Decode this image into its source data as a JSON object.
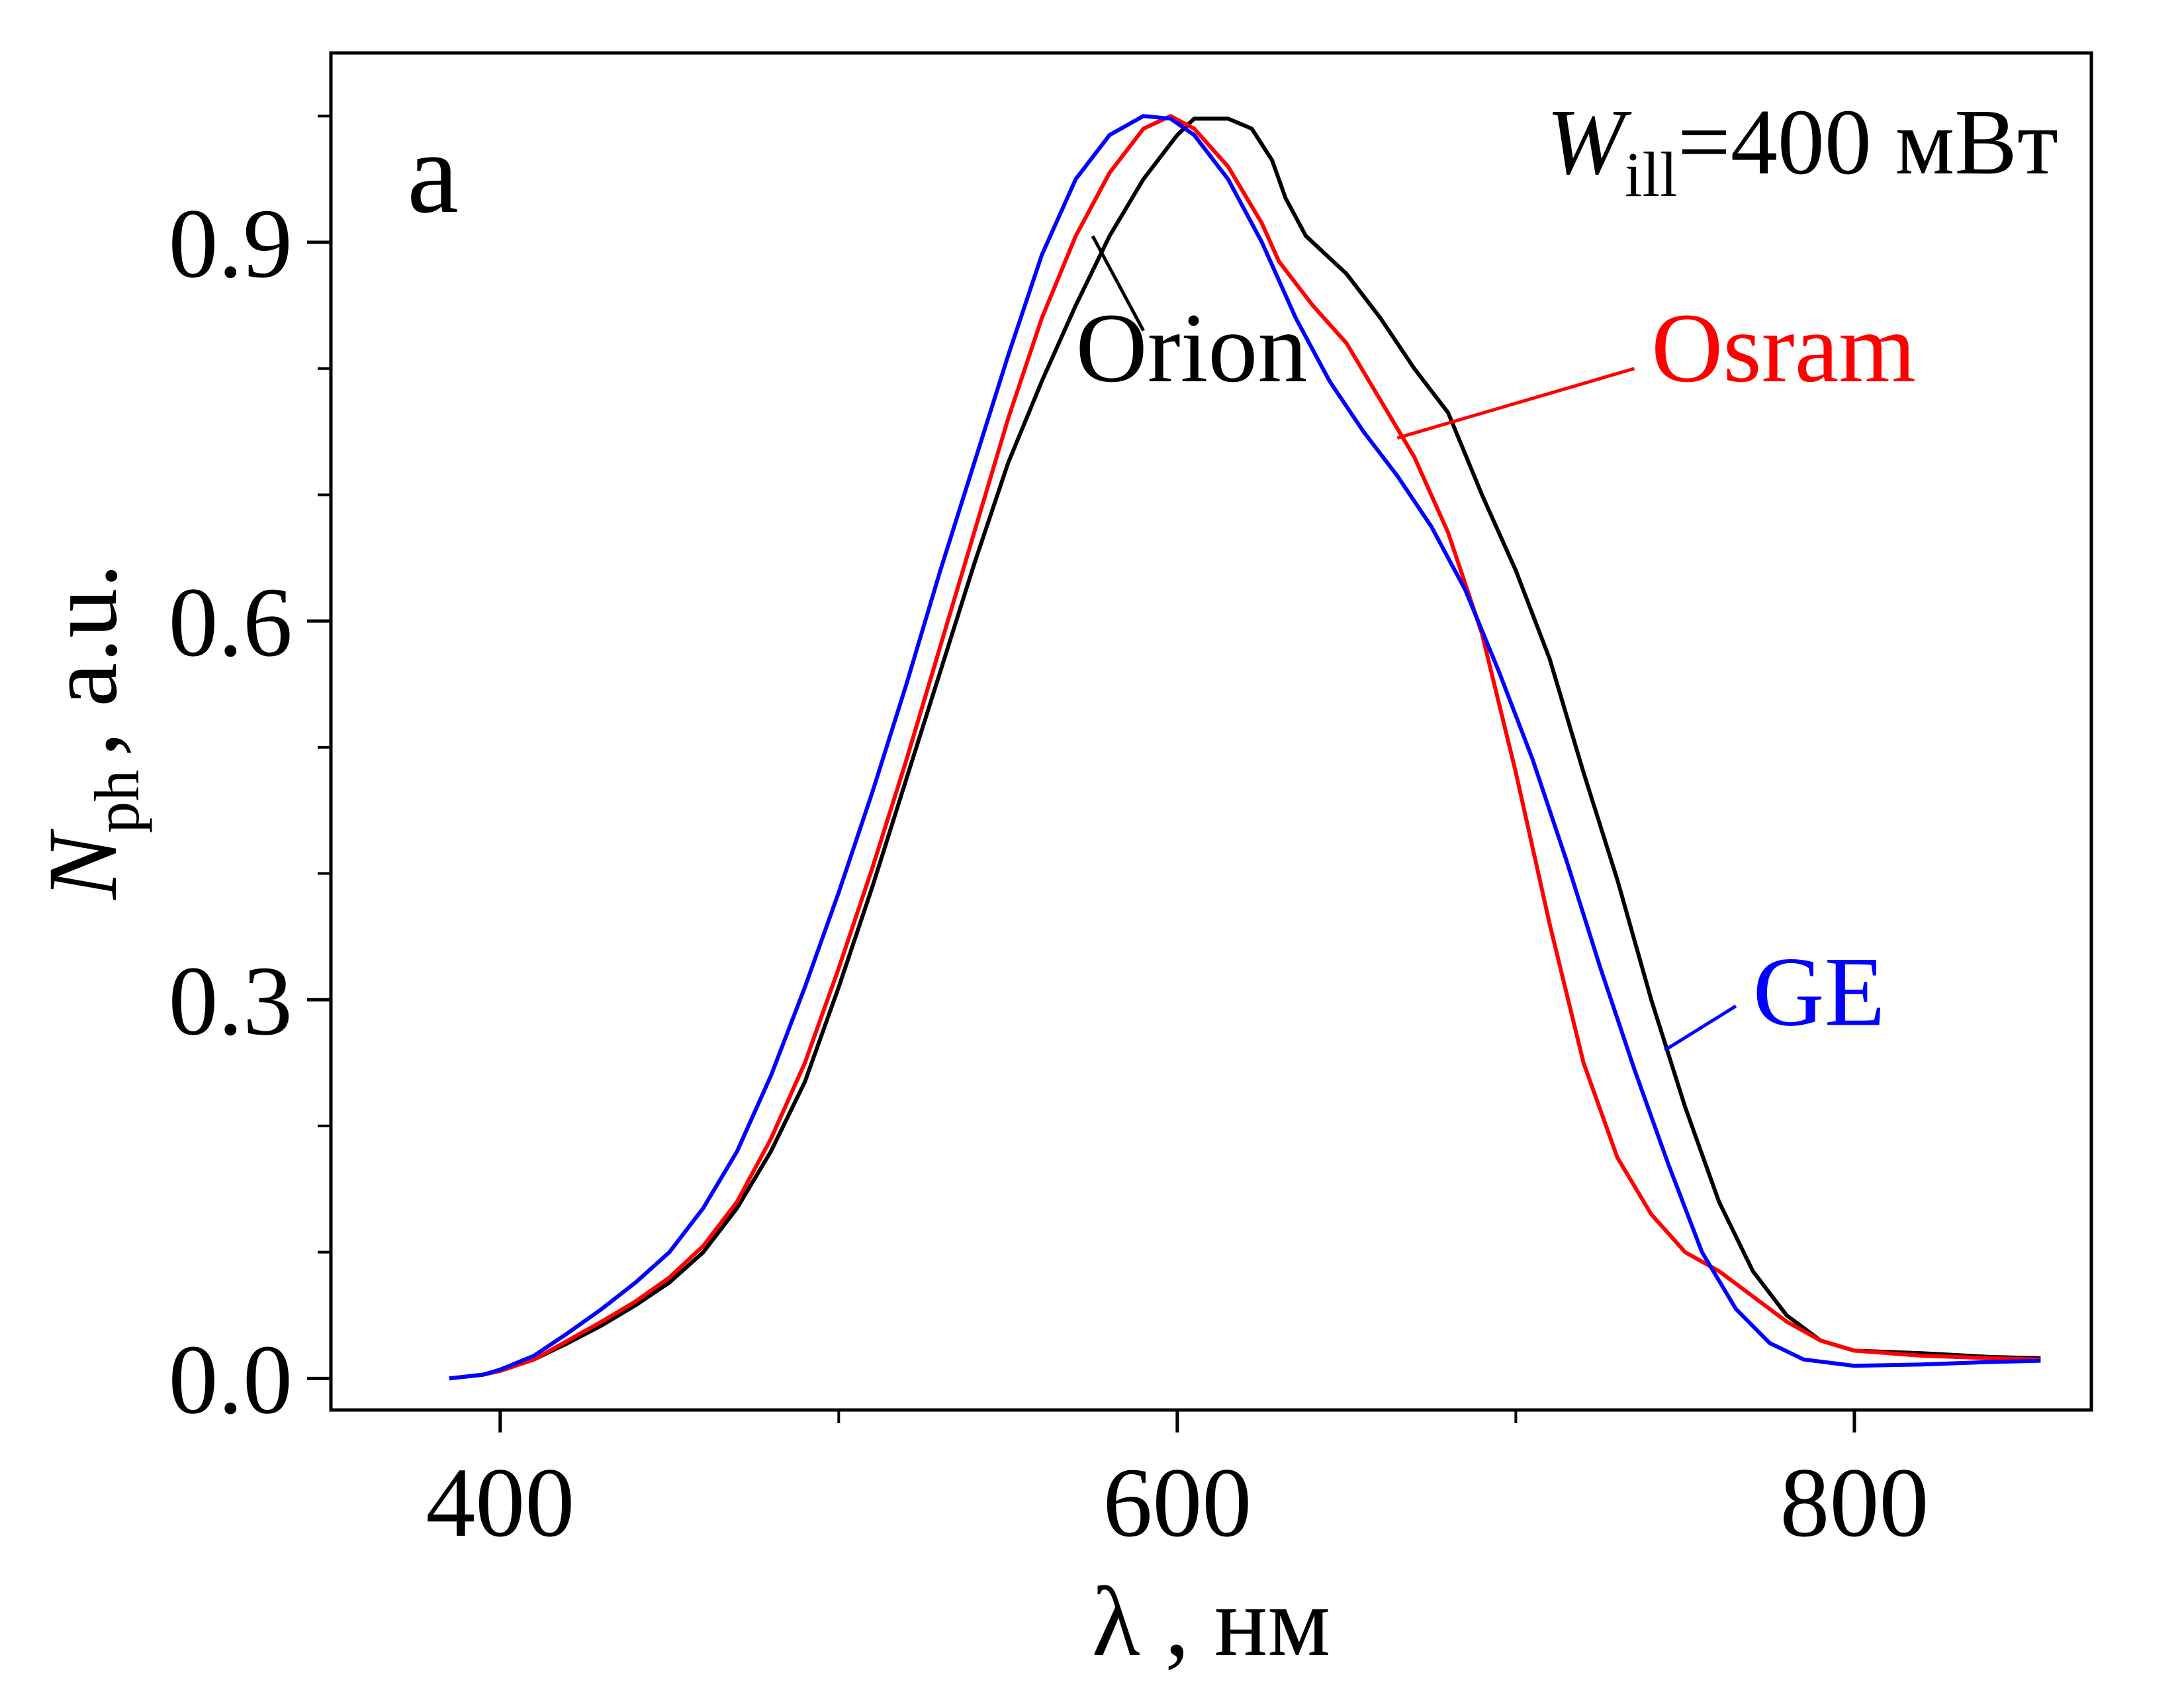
{
  "chart_data": {
    "type": "line",
    "panel_label": "a",
    "annotation": {
      "symbol": "W",
      "subscript": "ill",
      "text": "=400 мВт"
    },
    "xlabel": "λ ,  нм",
    "ylabel": {
      "symbol": "N",
      "subscript": "ph",
      "text": ", a.u."
    },
    "xlim": [
      350,
      870
    ],
    "ylim": [
      -0.025,
      1.05
    ],
    "x_ticks": [
      400,
      600,
      800
    ],
    "x_tick_labels": [
      "400",
      "600",
      "800"
    ],
    "y_ticks": [
      0.0,
      0.3,
      0.6,
      0.9
    ],
    "y_tick_labels": [
      "0.0",
      "0.3",
      "0.6",
      "0.9"
    ],
    "x_minor_ticks": [
      500,
      700
    ],
    "y_minor_ticks": [
      0.1,
      0.2,
      0.4,
      0.5,
      0.7,
      0.8,
      1.0
    ],
    "grid": false,
    "legend": "none",
    "series": [
      {
        "name": "Orion",
        "color": "#000000",
        "points": [
          [
            385,
            0.0
          ],
          [
            395,
            0.003
          ],
          [
            400,
            0.006
          ],
          [
            410,
            0.015
          ],
          [
            420,
            0.028
          ],
          [
            430,
            0.042
          ],
          [
            440,
            0.058
          ],
          [
            450,
            0.076
          ],
          [
            460,
            0.1
          ],
          [
            470,
            0.135
          ],
          [
            480,
            0.18
          ],
          [
            490,
            0.235
          ],
          [
            500,
            0.31
          ],
          [
            510,
            0.39
          ],
          [
            520,
            0.475
          ],
          [
            530,
            0.56
          ],
          [
            540,
            0.645
          ],
          [
            550,
            0.725
          ],
          [
            560,
            0.79
          ],
          [
            570,
            0.85
          ],
          [
            580,
            0.905
          ],
          [
            590,
            0.95
          ],
          [
            600,
            0.985
          ],
          [
            605,
            0.998
          ],
          [
            615,
            0.998
          ],
          [
            622,
            0.99
          ],
          [
            628,
            0.965
          ],
          [
            632,
            0.935
          ],
          [
            638,
            0.905
          ],
          [
            650,
            0.875
          ],
          [
            660,
            0.84
          ],
          [
            670,
            0.8
          ],
          [
            680,
            0.765
          ],
          [
            690,
            0.7
          ],
          [
            700,
            0.64
          ],
          [
            710,
            0.57
          ],
          [
            720,
            0.48
          ],
          [
            730,
            0.395
          ],
          [
            740,
            0.3
          ],
          [
            750,
            0.215
          ],
          [
            760,
            0.14
          ],
          [
            770,
            0.085
          ],
          [
            780,
            0.05
          ],
          [
            790,
            0.03
          ],
          [
            800,
            0.022
          ],
          [
            820,
            0.02
          ],
          [
            840,
            0.017
          ],
          [
            855,
            0.016
          ]
        ]
      },
      {
        "name": "Osram",
        "color": "#ff0000",
        "points": [
          [
            385,
            0.0
          ],
          [
            395,
            0.003
          ],
          [
            400,
            0.006
          ],
          [
            410,
            0.015
          ],
          [
            420,
            0.03
          ],
          [
            430,
            0.045
          ],
          [
            440,
            0.061
          ],
          [
            450,
            0.08
          ],
          [
            460,
            0.105
          ],
          [
            470,
            0.14
          ],
          [
            480,
            0.19
          ],
          [
            490,
            0.25
          ],
          [
            500,
            0.325
          ],
          [
            510,
            0.405
          ],
          [
            520,
            0.49
          ],
          [
            530,
            0.58
          ],
          [
            540,
            0.67
          ],
          [
            550,
            0.76
          ],
          [
            560,
            0.84
          ],
          [
            570,
            0.905
          ],
          [
            580,
            0.955
          ],
          [
            590,
            0.99
          ],
          [
            598,
            1.0
          ],
          [
            605,
            0.99
          ],
          [
            615,
            0.96
          ],
          [
            625,
            0.915
          ],
          [
            630,
            0.885
          ],
          [
            640,
            0.85
          ],
          [
            650,
            0.82
          ],
          [
            660,
            0.775
          ],
          [
            670,
            0.73
          ],
          [
            680,
            0.67
          ],
          [
            690,
            0.59
          ],
          [
            700,
            0.48
          ],
          [
            710,
            0.36
          ],
          [
            720,
            0.25
          ],
          [
            730,
            0.175
          ],
          [
            740,
            0.13
          ],
          [
            750,
            0.1
          ],
          [
            760,
            0.085
          ],
          [
            770,
            0.065
          ],
          [
            780,
            0.045
          ],
          [
            790,
            0.03
          ],
          [
            800,
            0.022
          ],
          [
            820,
            0.018
          ],
          [
            840,
            0.016
          ],
          [
            855,
            0.015
          ]
        ]
      },
      {
        "name": "GE",
        "color": "#0000ff",
        "points": [
          [
            385,
            0.0
          ],
          [
            395,
            0.003
          ],
          [
            400,
            0.007
          ],
          [
            410,
            0.018
          ],
          [
            420,
            0.036
          ],
          [
            430,
            0.055
          ],
          [
            440,
            0.076
          ],
          [
            450,
            0.1
          ],
          [
            460,
            0.135
          ],
          [
            470,
            0.18
          ],
          [
            480,
            0.24
          ],
          [
            490,
            0.31
          ],
          [
            500,
            0.385
          ],
          [
            510,
            0.465
          ],
          [
            520,
            0.55
          ],
          [
            530,
            0.64
          ],
          [
            540,
            0.725
          ],
          [
            550,
            0.81
          ],
          [
            560,
            0.89
          ],
          [
            570,
            0.95
          ],
          [
            580,
            0.985
          ],
          [
            590,
            1.0
          ],
          [
            598,
            0.998
          ],
          [
            605,
            0.985
          ],
          [
            615,
            0.95
          ],
          [
            625,
            0.9
          ],
          [
            635,
            0.84
          ],
          [
            645,
            0.79
          ],
          [
            655,
            0.75
          ],
          [
            665,
            0.715
          ],
          [
            675,
            0.675
          ],
          [
            685,
            0.625
          ],
          [
            695,
            0.56
          ],
          [
            705,
            0.49
          ],
          [
            715,
            0.41
          ],
          [
            725,
            0.325
          ],
          [
            735,
            0.245
          ],
          [
            745,
            0.17
          ],
          [
            755,
            0.1
          ],
          [
            765,
            0.055
          ],
          [
            775,
            0.028
          ],
          [
            785,
            0.015
          ],
          [
            800,
            0.01
          ],
          [
            820,
            0.011
          ],
          [
            840,
            0.013
          ],
          [
            855,
            0.014
          ]
        ]
      }
    ],
    "series_labels": [
      {
        "name": "Orion",
        "label_at": [
          570,
          0.79
        ],
        "leader_from": [
          575,
          0.905
        ],
        "leader_to": [
          590,
          0.83
        ]
      },
      {
        "name": "Osram",
        "label_at": [
          740,
          0.79
        ],
        "leader_from": [
          665,
          0.745
        ],
        "leader_to": [
          735,
          0.8
        ]
      },
      {
        "name": "GE",
        "label_at": [
          770,
          0.28
        ],
        "leader_from": [
          744,
          0.26
        ],
        "leader_to": [
          765,
          0.295
        ]
      }
    ]
  }
}
